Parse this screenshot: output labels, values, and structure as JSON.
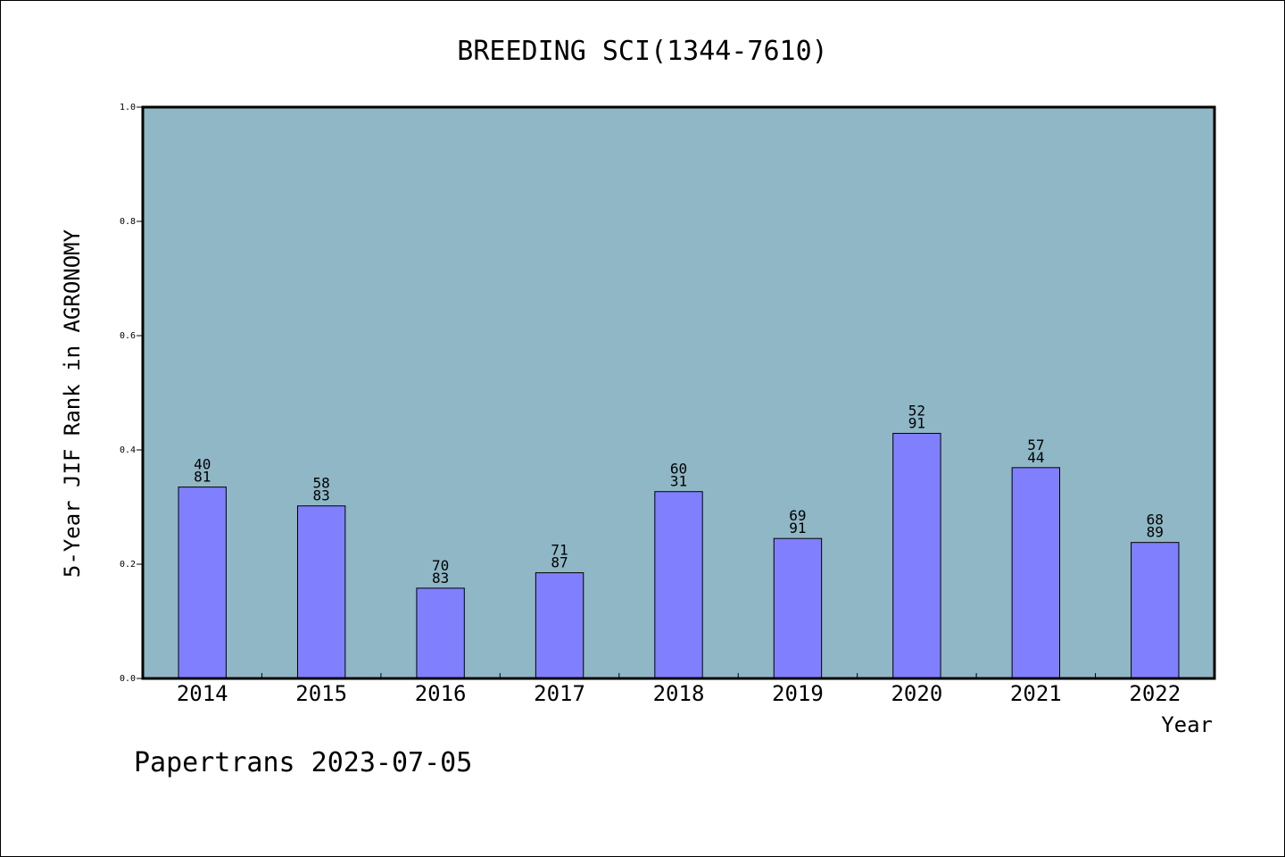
{
  "chart_data": {
    "type": "bar",
    "title": "BREEDING SCI(1344-7610)",
    "xlabel": "Year",
    "ylabel": "5-Year JIF Rank in AGRONOMY",
    "ylim": [
      0,
      1.0
    ],
    "yticks": [
      "0.0",
      "0.2",
      "0.4",
      "0.6",
      "0.8",
      "1.0"
    ],
    "categories": [
      "2014",
      "2015",
      "2016",
      "2017",
      "2018",
      "2019",
      "2020",
      "2021",
      "2022"
    ],
    "values": [
      0.335,
      0.302,
      0.158,
      0.185,
      0.327,
      0.245,
      0.429,
      0.369,
      0.238
    ],
    "labels": [
      [
        "40",
        "81"
      ],
      [
        "58",
        "83"
      ],
      [
        "70",
        "83"
      ],
      [
        "71",
        "87"
      ],
      [
        "60",
        "31"
      ],
      [
        "69",
        "91"
      ],
      [
        "52",
        "91"
      ],
      [
        "57",
        "44"
      ],
      [
        "68",
        "89"
      ]
    ],
    "grid": false,
    "colors": {
      "plot_background": "#8fb7c5",
      "bar_fill": "#8080ff",
      "bar_stroke": "#000000"
    }
  },
  "footer": "Papertrans 2023-07-05"
}
